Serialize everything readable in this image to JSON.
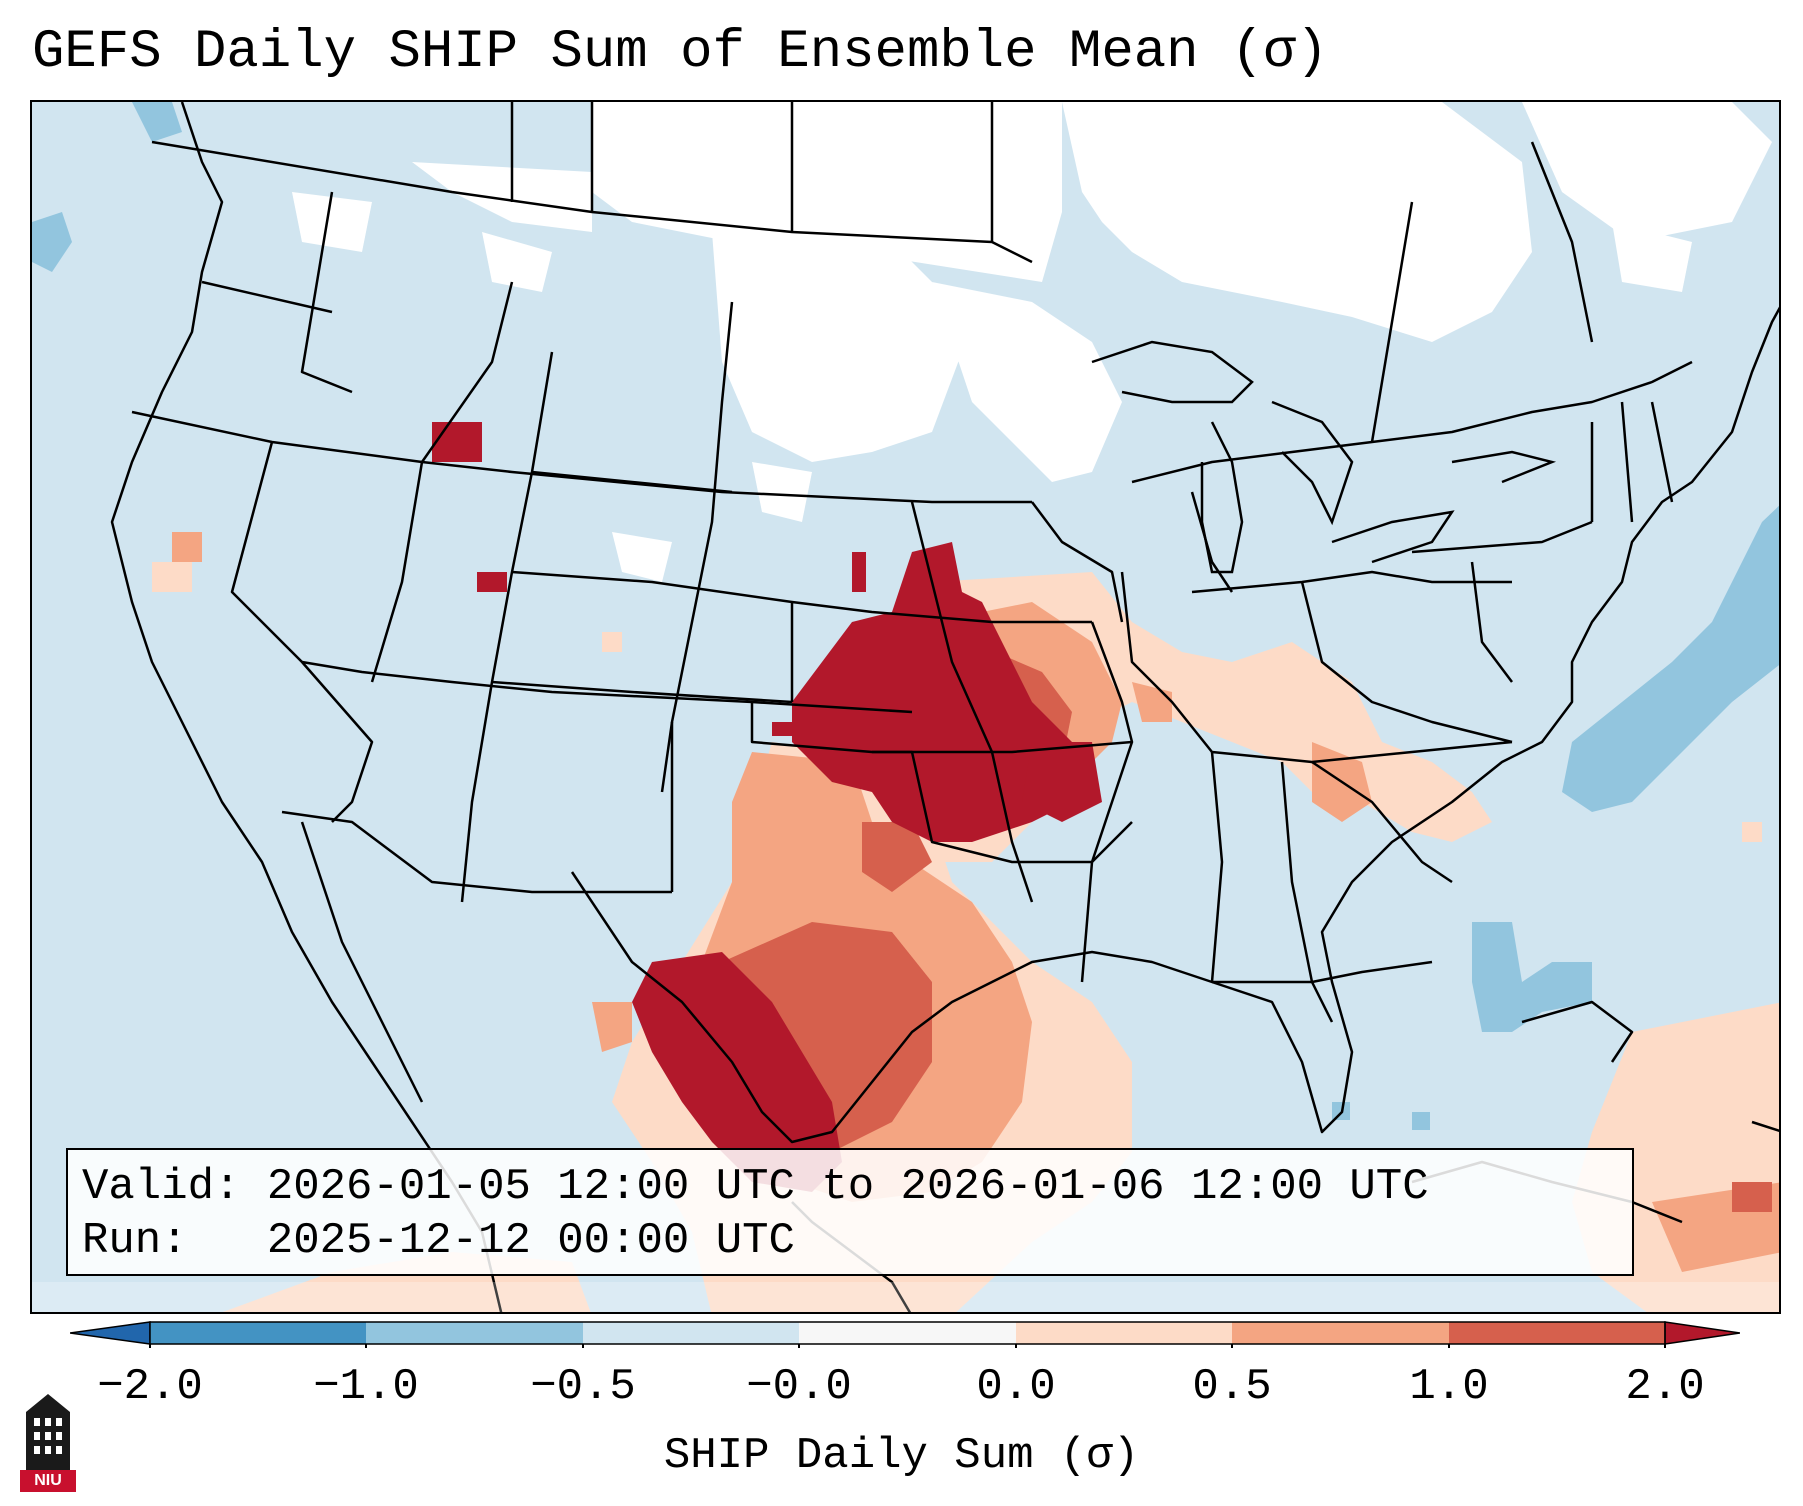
{
  "title": "GEFS Daily SHIP Sum of Ensemble Mean (σ)",
  "info": {
    "valid_line": "Valid: 2026-01-05 12:00 UTC to 2026-01-06 12:00 UTC",
    "run_line": "Run:   2025-12-12 00:00 UTC"
  },
  "colorbar": {
    "label": "SHIP Daily Sum (σ)",
    "ticks": [
      "−2.0",
      "−1.0",
      "−0.5",
      "−0.0",
      "0.0",
      "0.5",
      "1.0",
      "2.0"
    ],
    "colors": [
      "#4393c3",
      "#92c5de",
      "#d1e5f0",
      "#f7f7f7",
      "#fddbc7",
      "#f4a582",
      "#d6604d",
      "#b2182b"
    ],
    "extend_low_color": "#2166ac",
    "extend_high_color": "#b2182b"
  },
  "logo": {
    "text": "NIU",
    "color": "#c8102e"
  }
}
